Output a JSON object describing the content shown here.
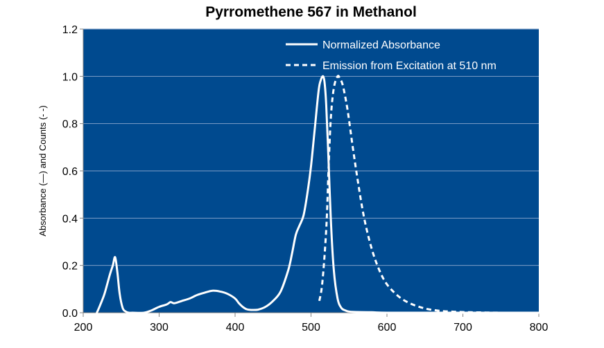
{
  "chart_data": {
    "type": "line",
    "title": "Pyrromethene 567 in Methanol",
    "xlabel": "",
    "ylabel": "Absorbance (—) and Counts (- -)",
    "xlim": [
      200,
      800
    ],
    "ylim": [
      0,
      1.2
    ],
    "x_ticks": [
      "200",
      "300",
      "400",
      "500",
      "600",
      "700",
      "800"
    ],
    "y_ticks": [
      "0.0",
      "0.2",
      "0.4",
      "0.6",
      "0.8",
      "1.0",
      "1.2"
    ],
    "grid": "horizontal",
    "legend_position": "top-right",
    "colors": {
      "plot_background": "#004a8f",
      "line": "#ffffff",
      "grid": "#7f9fc7"
    },
    "series": [
      {
        "name": "Normalized Absorbance",
        "style": "solid",
        "x": [
          218,
          222,
          228,
          235,
          239,
          242,
          245,
          248,
          252,
          256,
          260,
          265,
          280,
          290,
          300,
          310,
          315,
          320,
          330,
          340,
          350,
          360,
          370,
          380,
          390,
          400,
          405,
          410,
          415,
          420,
          430,
          440,
          450,
          460,
          470,
          475,
          480,
          485,
          490,
          495,
          500,
          505,
          510,
          513,
          516,
          518,
          520,
          523,
          526,
          530,
          535,
          540,
          545,
          550,
          560,
          580,
          600,
          650,
          700,
          750,
          800
        ],
        "y": [
          0.0,
          0.03,
          0.08,
          0.16,
          0.2,
          0.235,
          0.17,
          0.08,
          0.02,
          0.005,
          0.0,
          0.0,
          0.0,
          0.01,
          0.025,
          0.035,
          0.045,
          0.04,
          0.05,
          0.06,
          0.075,
          0.085,
          0.093,
          0.09,
          0.08,
          0.06,
          0.04,
          0.025,
          0.015,
          0.012,
          0.013,
          0.025,
          0.05,
          0.09,
          0.18,
          0.25,
          0.33,
          0.37,
          0.41,
          0.5,
          0.62,
          0.78,
          0.94,
          0.985,
          1.0,
          0.97,
          0.88,
          0.65,
          0.4,
          0.18,
          0.06,
          0.02,
          0.01,
          0.005,
          0.003,
          0.002,
          0.0,
          0.0,
          0.0,
          0.0,
          0.0
        ]
      },
      {
        "name": "Emission from Excitation at 510 nm",
        "style": "dashed",
        "x": [
          511,
          515,
          520,
          523,
          526,
          530,
          535,
          538,
          542,
          548,
          555,
          562,
          570,
          580,
          590,
          600,
          615,
          630,
          650,
          670,
          690,
          710,
          730,
          750,
          770,
          800
        ],
        "y": [
          0.05,
          0.13,
          0.35,
          0.6,
          0.82,
          0.95,
          1.0,
          0.99,
          0.96,
          0.86,
          0.7,
          0.55,
          0.4,
          0.27,
          0.18,
          0.12,
          0.07,
          0.04,
          0.018,
          0.008,
          0.004,
          0.002,
          0.001,
          0.0,
          0.0,
          0.0
        ]
      }
    ]
  }
}
